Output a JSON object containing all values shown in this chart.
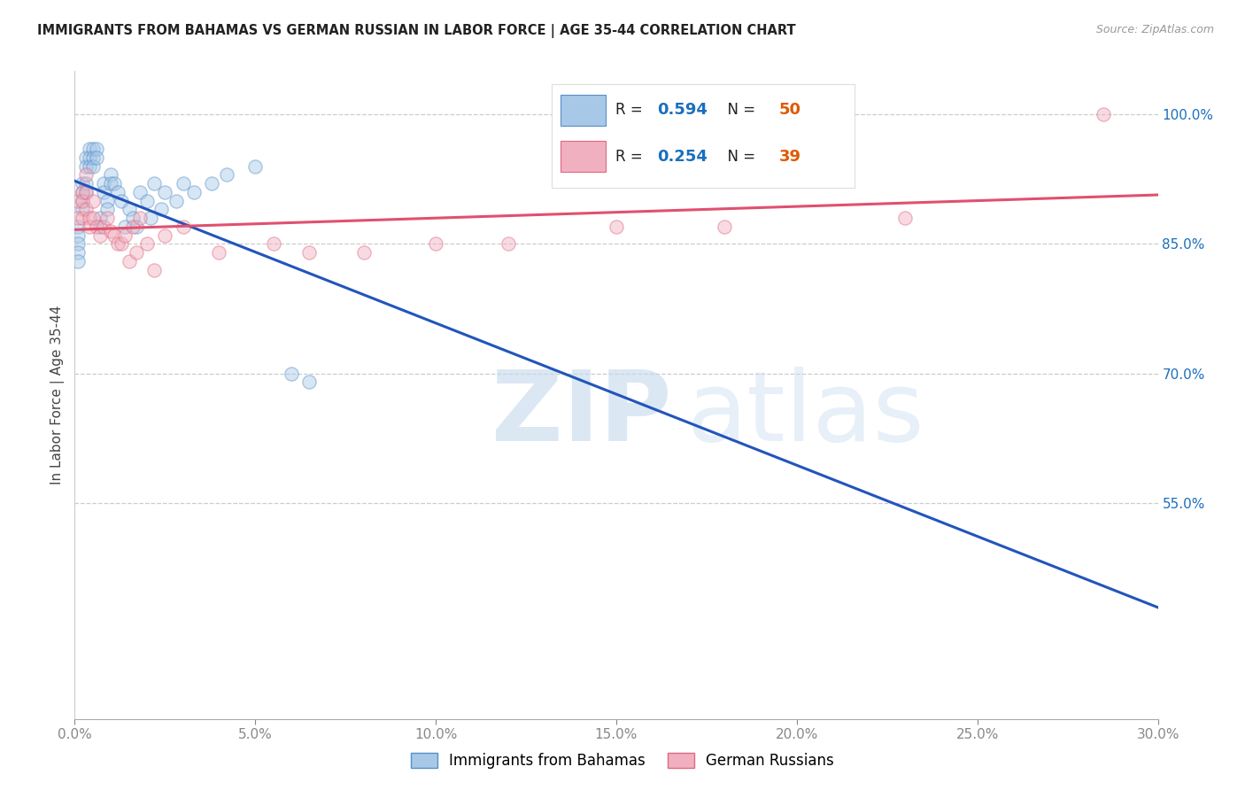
{
  "title": "IMMIGRANTS FROM BAHAMAS VS GERMAN RUSSIAN IN LABOR FORCE | AGE 35-44 CORRELATION CHART",
  "source": "Source: ZipAtlas.com",
  "ylabel": "In Labor Force | Age 35-44",
  "xmin": 0.0,
  "xmax": 0.3,
  "ymin": 0.3,
  "ymax": 1.05,
  "xticks": [
    0.0,
    0.05,
    0.1,
    0.15,
    0.2,
    0.25,
    0.3
  ],
  "xtick_labels": [
    "0.0%",
    "5.0%",
    "10.0%",
    "15.0%",
    "20.0%",
    "25.0%",
    "30.0%"
  ],
  "grid_yticks": [
    0.55,
    0.7,
    0.85,
    1.0
  ],
  "right_ytick_vals": [
    0.55,
    0.7,
    0.85,
    1.0
  ],
  "right_ytick_labels": [
    "55.0%",
    "70.0%",
    "85.0%",
    "100.0%"
  ],
  "bahamas_color": "#a8c8e8",
  "bahamas_edge": "#5590c8",
  "german_color": "#f0b0c0",
  "german_edge": "#e06880",
  "bahamas_R": 0.594,
  "bahamas_N": 50,
  "german_R": 0.254,
  "german_N": 39,
  "legend_R_color": "#1a6fbd",
  "legend_N_color": "#e05a00",
  "bahamas_line_color": "#2255bb",
  "german_line_color": "#e05070",
  "bahamas_x": [
    0.001,
    0.001,
    0.001,
    0.001,
    0.001,
    0.002,
    0.002,
    0.002,
    0.002,
    0.003,
    0.003,
    0.003,
    0.003,
    0.004,
    0.004,
    0.004,
    0.005,
    0.005,
    0.005,
    0.006,
    0.006,
    0.007,
    0.007,
    0.008,
    0.008,
    0.009,
    0.009,
    0.01,
    0.01,
    0.011,
    0.012,
    0.013,
    0.014,
    0.015,
    0.016,
    0.017,
    0.018,
    0.02,
    0.021,
    0.022,
    0.024,
    0.025,
    0.028,
    0.03,
    0.033,
    0.038,
    0.042,
    0.05,
    0.06,
    0.065
  ],
  "bahamas_y": [
    0.87,
    0.86,
    0.85,
    0.84,
    0.83,
    0.92,
    0.91,
    0.9,
    0.89,
    0.95,
    0.94,
    0.92,
    0.91,
    0.96,
    0.95,
    0.94,
    0.96,
    0.95,
    0.94,
    0.96,
    0.95,
    0.88,
    0.87,
    0.92,
    0.91,
    0.9,
    0.89,
    0.93,
    0.92,
    0.92,
    0.91,
    0.9,
    0.87,
    0.89,
    0.88,
    0.87,
    0.91,
    0.9,
    0.88,
    0.92,
    0.89,
    0.91,
    0.9,
    0.92,
    0.91,
    0.92,
    0.93,
    0.94,
    0.7,
    0.69
  ],
  "german_x": [
    0.001,
    0.001,
    0.002,
    0.002,
    0.002,
    0.003,
    0.003,
    0.003,
    0.004,
    0.004,
    0.005,
    0.005,
    0.006,
    0.007,
    0.008,
    0.009,
    0.01,
    0.011,
    0.012,
    0.013,
    0.014,
    0.015,
    0.016,
    0.017,
    0.018,
    0.02,
    0.022,
    0.025,
    0.03,
    0.04,
    0.055,
    0.065,
    0.08,
    0.1,
    0.12,
    0.15,
    0.18,
    0.23,
    0.285
  ],
  "german_y": [
    0.9,
    0.88,
    0.91,
    0.9,
    0.88,
    0.93,
    0.91,
    0.89,
    0.88,
    0.87,
    0.9,
    0.88,
    0.87,
    0.86,
    0.87,
    0.88,
    0.865,
    0.86,
    0.85,
    0.85,
    0.86,
    0.83,
    0.87,
    0.84,
    0.88,
    0.85,
    0.82,
    0.86,
    0.87,
    0.84,
    0.85,
    0.84,
    0.84,
    0.85,
    0.85,
    0.87,
    0.87,
    0.88,
    1.0
  ],
  "background_color": "#ffffff",
  "title_color": "#222222",
  "axis_label_color": "#444444",
  "tick_color": "#888888",
  "right_tick_color": "#1a6fbd",
  "marker_size": 120,
  "marker_alpha": 0.45,
  "watermark_zip": "ZIP",
  "watermark_atlas": "atlas",
  "watermark_color_zip": "#c5d8ee",
  "watermark_color_atlas": "#c5d8ee",
  "watermark_fontsize": 80
}
